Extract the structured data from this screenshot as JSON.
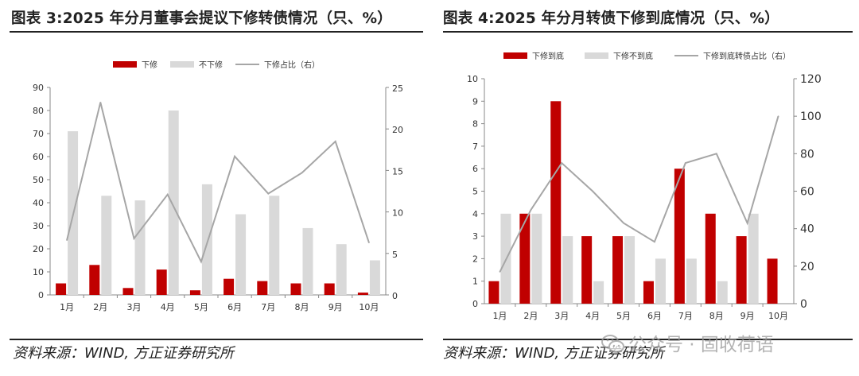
{
  "colors": {
    "primary": "#c00000",
    "secondary": "#d9d9d9",
    "line": "#a6a6a6",
    "rule": "#222222"
  },
  "left_panel": {
    "title": "图表 3:2025 年分月董事会提议下修转债情况（只、%）",
    "source": "资料来源：WIND, 方正证券研究所"
  },
  "right_panel": {
    "title": "图表 4:2025 年分月转债下修到底情况（只、%）",
    "source": "资料来源：WIND, 方正证券研究所"
  },
  "watermark": {
    "text": "公众号 · 固收荷语",
    "icon": "wechat-icon"
  },
  "chart_data": [
    {
      "type": "bar",
      "categories": [
        "1月",
        "2月",
        "3月",
        "4月",
        "5月",
        "6月",
        "7月",
        "8月",
        "9月",
        "10月"
      ],
      "series": [
        {
          "name": "下修",
          "type": "bar",
          "axis": "left",
          "values": [
            5,
            13,
            3,
            11,
            2,
            7,
            6,
            5,
            5,
            1
          ]
        },
        {
          "name": "不下修",
          "type": "bar",
          "axis": "left",
          "values": [
            71,
            43,
            41,
            80,
            48,
            35,
            43,
            29,
            22,
            15
          ]
        },
        {
          "name": "下修占比（右）",
          "type": "line",
          "axis": "right",
          "values": [
            6.6,
            23.2,
            6.8,
            12.1,
            4.0,
            16.7,
            12.2,
            14.7,
            18.5,
            6.3
          ]
        }
      ],
      "ylim": [
        0,
        90
      ],
      "yticks": [
        0,
        10,
        20,
        30,
        40,
        50,
        60,
        70,
        80,
        90
      ],
      "y2lim": [
        0,
        25
      ],
      "y2ticks": [
        0,
        5,
        10,
        15,
        20,
        25
      ],
      "grid": false,
      "legend": "top-center"
    },
    {
      "type": "bar",
      "categories": [
        "1月",
        "2月",
        "3月",
        "4月",
        "5月",
        "6月",
        "7月",
        "8月",
        "9月",
        "10月"
      ],
      "series": [
        {
          "name": "下修到底",
          "type": "bar",
          "axis": "left",
          "values": [
            1,
            4,
            9,
            3,
            3,
            1,
            6,
            4,
            3,
            2
          ]
        },
        {
          "name": "下修不到底",
          "type": "bar",
          "axis": "left",
          "values": [
            4,
            4,
            3,
            1,
            3,
            2,
            2,
            1,
            4,
            0
          ]
        },
        {
          "name": "下修到底转债占比（右）",
          "type": "line",
          "axis": "right",
          "values": [
            17,
            50,
            75,
            60,
            43,
            33,
            75,
            80,
            43,
            100
          ]
        }
      ],
      "ylim": [
        0,
        10
      ],
      "yticks": [
        0,
        1,
        2,
        3,
        4,
        5,
        6,
        7,
        8,
        9,
        10
      ],
      "y2lim": [
        0,
        120
      ],
      "y2ticks": [
        0,
        20,
        40,
        60,
        80,
        100,
        120
      ],
      "grid": false,
      "legend": "top-center"
    }
  ]
}
